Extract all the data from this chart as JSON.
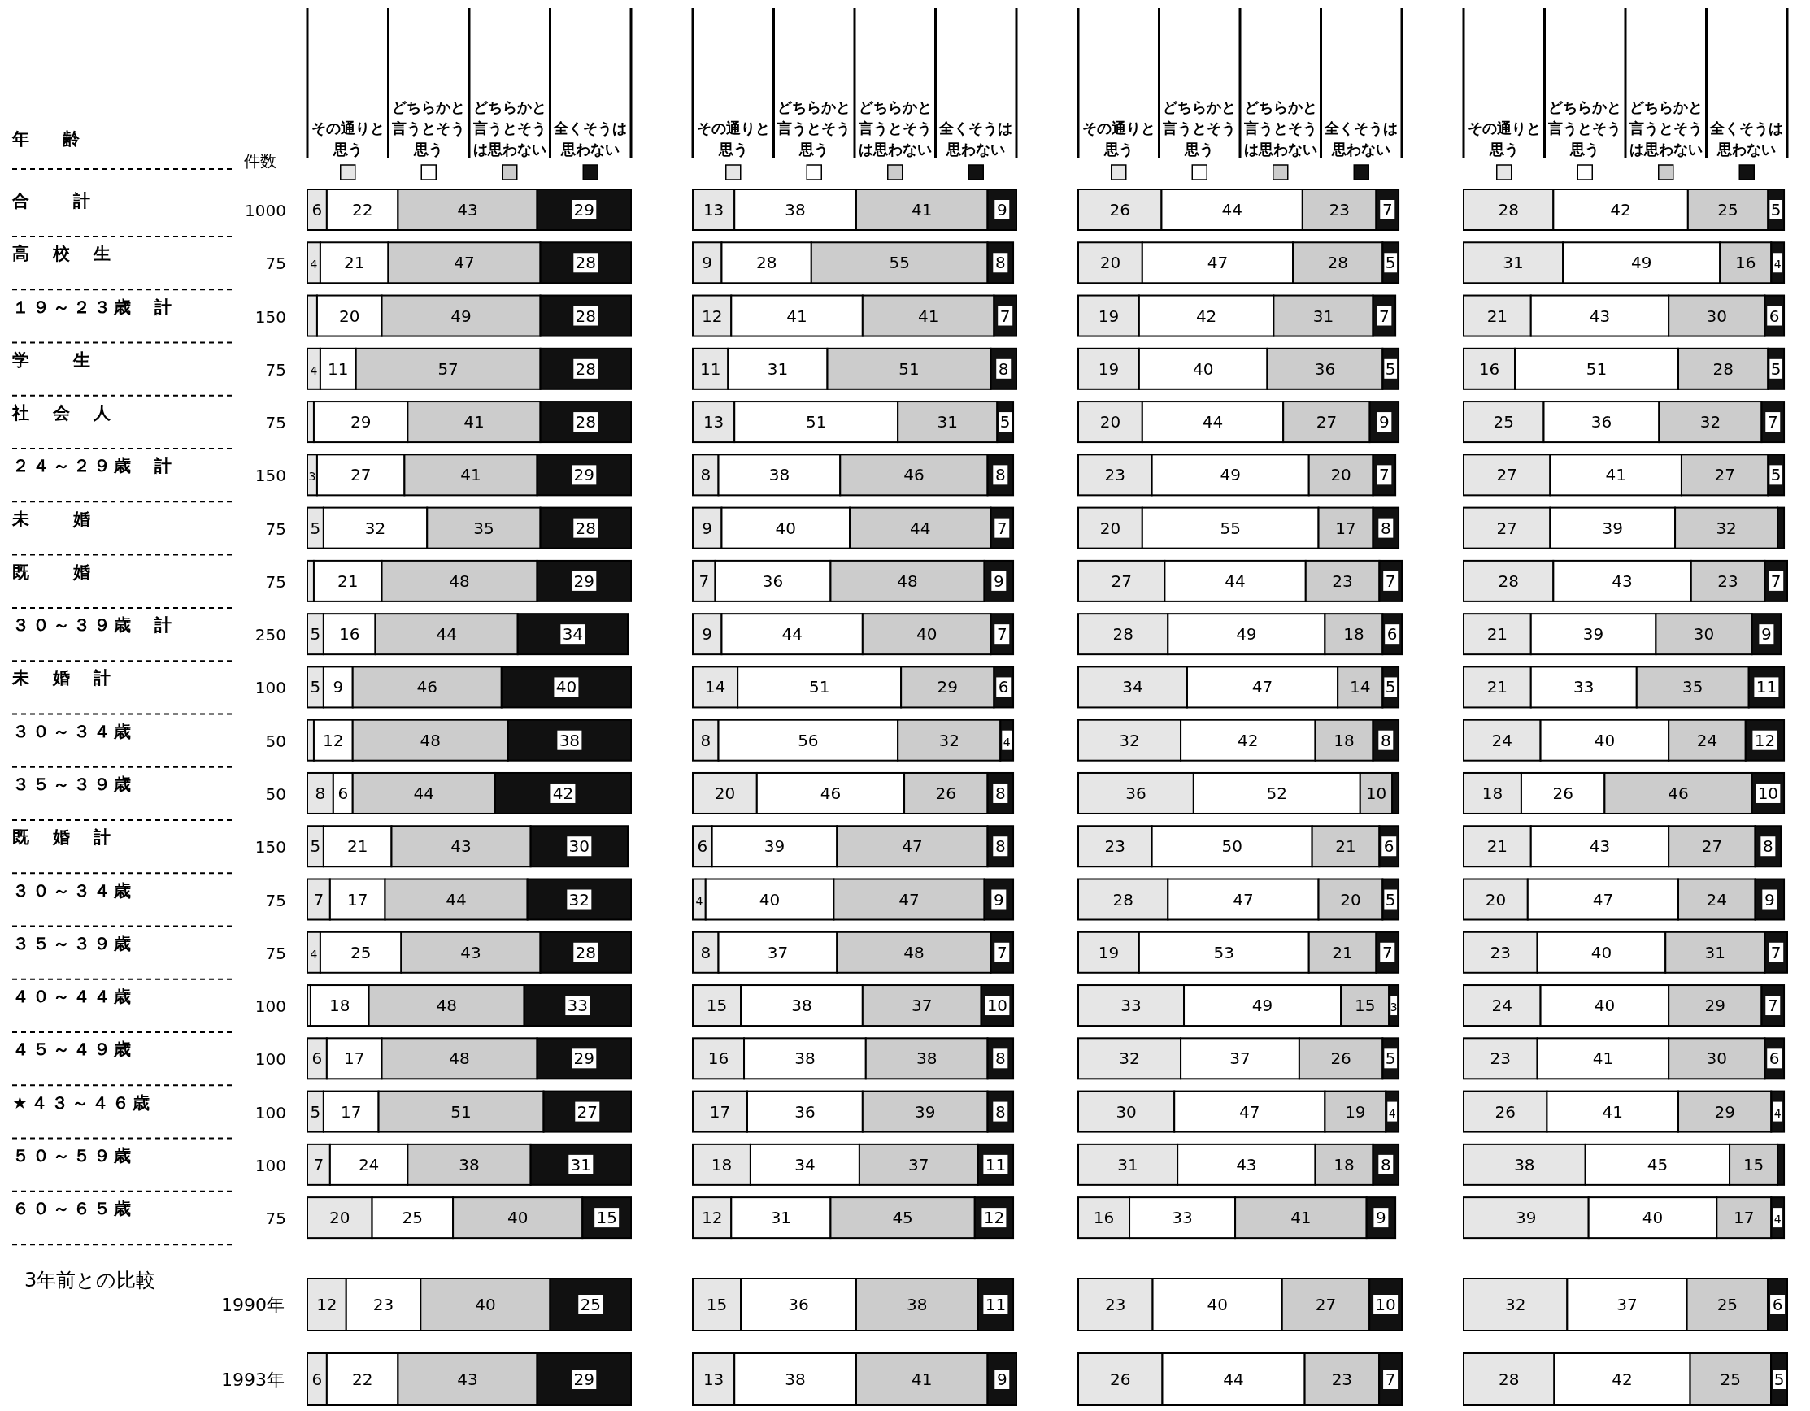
{
  "chart_data": [
    {
      "type": "bar",
      "orientation": "horizontal",
      "stacked": true,
      "legend": "top",
      "ylabel": "年　齢",
      "data_labels": true,
      "categories": [
        "合　　計",
        "高　校　生",
        "１９～２３歳　計",
        "学　　生",
        "社　会　人",
        "２４～２９歳　計",
        "未　　婚",
        "既　　婚",
        "３０～３９歳　計",
        "未　婚　計",
        "３０～３４歳",
        "３５～３９歳",
        "既　婚　計",
        "３０～３４歳",
        "３５～３９歳",
        "４０～４４歳",
        "４５～４９歳",
        "★４３～４６歳",
        "５０～５９歳",
        "６０～６５歳"
      ],
      "annotations": [
        "件数",
        "1000",
        "75",
        "150",
        "75",
        "75",
        "150",
        "75",
        "75",
        "250",
        "100",
        "50",
        "50",
        "150",
        "75",
        "75",
        "100",
        "100",
        "100",
        "100",
        "75"
      ],
      "series": [
        {
          "name": "その通りと思う",
          "color": "#e6e6e6",
          "values": [
            6,
            4,
            3,
            4,
            2,
            3,
            5,
            2,
            5,
            5,
            2,
            8,
            5,
            7,
            4,
            1,
            6,
            5,
            7,
            20
          ],
          "value_labels": [
            "6",
            "4",
            null,
            "4",
            null,
            "3",
            "5",
            null,
            "5",
            "5",
            null,
            "8",
            "5",
            "7",
            "4",
            null,
            "6",
            "5",
            "7",
            "20"
          ]
        },
        {
          "name": "どちらかと言うとそう思う",
          "color": "#ffffff",
          "values": [
            22,
            21,
            20,
            11,
            29,
            27,
            32,
            21,
            16,
            9,
            12,
            6,
            21,
            17,
            25,
            18,
            17,
            17,
            24,
            25
          ]
        },
        {
          "name": "どちらかと言うとそうは思わない",
          "color": "#cccccc",
          "values": [
            43,
            47,
            49,
            57,
            41,
            41,
            35,
            48,
            44,
            46,
            48,
            44,
            43,
            44,
            43,
            48,
            48,
            51,
            38,
            40
          ]
        },
        {
          "name": "全くそうは思わない",
          "color": "#111111",
          "values": [
            29,
            28,
            28,
            28,
            28,
            29,
            28,
            29,
            34,
            40,
            38,
            42,
            30,
            32,
            28,
            33,
            29,
            27,
            31,
            15
          ]
        }
      ]
    },
    {
      "type": "bar",
      "orientation": "horizontal",
      "stacked": true,
      "legend": "top",
      "data_labels": true,
      "categories": [
        null,
        null,
        null,
        null,
        null,
        null,
        null,
        null,
        null,
        null,
        null,
        null,
        null,
        null,
        null,
        null,
        null,
        null,
        null,
        null
      ],
      "series": [
        {
          "name": "その通りと思う",
          "color": "#e6e6e6",
          "values": [
            13,
            9,
            12,
            11,
            13,
            8,
            9,
            7,
            9,
            14,
            8,
            20,
            6,
            4,
            8,
            15,
            16,
            17,
            18,
            12
          ]
        },
        {
          "name": "どちらかと言うとそう思う",
          "color": "#ffffff",
          "values": [
            38,
            28,
            41,
            31,
            51,
            38,
            40,
            36,
            44,
            51,
            56,
            46,
            39,
            40,
            37,
            38,
            38,
            36,
            34,
            31
          ]
        },
        {
          "name": "どちらかと言うとそうは思わない",
          "color": "#cccccc",
          "values": [
            41,
            55,
            41,
            51,
            31,
            46,
            44,
            48,
            40,
            29,
            32,
            26,
            47,
            47,
            48,
            37,
            38,
            39,
            37,
            45
          ]
        },
        {
          "name": "全くそうは思わない",
          "color": "#111111",
          "values": [
            9,
            8,
            7,
            8,
            5,
            8,
            7,
            9,
            7,
            6,
            4,
            8,
            8,
            9,
            7,
            10,
            8,
            8,
            11,
            12
          ]
        }
      ]
    },
    {
      "type": "bar",
      "orientation": "horizontal",
      "stacked": true,
      "legend": "top",
      "data_labels": true,
      "categories": [
        null,
        null,
        null,
        null,
        null,
        null,
        null,
        null,
        null,
        null,
        null,
        null,
        null,
        null,
        null,
        null,
        null,
        null,
        null,
        null
      ],
      "series": [
        {
          "name": "その通りと思う",
          "color": "#e6e6e6",
          "values": [
            26,
            20,
            19,
            19,
            20,
            23,
            20,
            27,
            28,
            34,
            32,
            36,
            23,
            28,
            19,
            33,
            32,
            30,
            31,
            16
          ]
        },
        {
          "name": "どちらかと言うとそう思う",
          "color": "#ffffff",
          "values": [
            44,
            47,
            42,
            40,
            44,
            49,
            55,
            44,
            49,
            47,
            42,
            52,
            50,
            47,
            53,
            49,
            37,
            47,
            43,
            33
          ]
        },
        {
          "name": "どちらかと言うとそうは思わない",
          "color": "#cccccc",
          "values": [
            23,
            28,
            31,
            36,
            27,
            20,
            17,
            23,
            18,
            14,
            18,
            10,
            21,
            20,
            21,
            15,
            26,
            19,
            18,
            41
          ]
        },
        {
          "name": "全くそうは思わない",
          "color": "#111111",
          "values": [
            7,
            5,
            7,
            5,
            9,
            7,
            8,
            7,
            6,
            5,
            8,
            2,
            6,
            5,
            7,
            3,
            5,
            4,
            8,
            9
          ],
          "value_labels": [
            "7",
            "5",
            "7",
            "5",
            "9",
            "7",
            "8",
            "7",
            "6",
            "5",
            "8",
            null,
            "6",
            "5",
            "7",
            "3",
            "5",
            "4",
            "8",
            "9"
          ]
        }
      ]
    },
    {
      "type": "bar",
      "orientation": "horizontal",
      "stacked": true,
      "legend": "top",
      "data_labels": true,
      "categories": [
        null,
        null,
        null,
        null,
        null,
        null,
        null,
        null,
        null,
        null,
        null,
        null,
        null,
        null,
        null,
        null,
        null,
        null,
        null,
        null
      ],
      "series": [
        {
          "name": "その通りと思う",
          "color": "#e6e6e6",
          "values": [
            28,
            31,
            21,
            16,
            25,
            27,
            27,
            28,
            21,
            21,
            24,
            18,
            21,
            20,
            23,
            24,
            23,
            26,
            38,
            39
          ]
        },
        {
          "name": "どちらかと言うとそう思う",
          "color": "#ffffff",
          "values": [
            42,
            49,
            43,
            51,
            36,
            41,
            39,
            43,
            39,
            33,
            40,
            26,
            43,
            47,
            40,
            40,
            41,
            41,
            45,
            40
          ]
        },
        {
          "name": "どちらかと言うとそうは思わない",
          "color": "#cccccc",
          "values": [
            25,
            16,
            30,
            28,
            32,
            27,
            32,
            23,
            30,
            35,
            24,
            46,
            27,
            24,
            31,
            29,
            30,
            29,
            15,
            17
          ]
        },
        {
          "name": "全くそうは思わない",
          "color": "#111111",
          "values": [
            5,
            4,
            6,
            5,
            7,
            5,
            2,
            7,
            9,
            11,
            12,
            10,
            8,
            9,
            7,
            7,
            6,
            4,
            2,
            4
          ],
          "value_labels": [
            "5",
            "4",
            "6",
            "5",
            "7",
            "5",
            null,
            "7",
            "9",
            "11",
            "12",
            "10",
            "8",
            "9",
            "7",
            "7",
            "6",
            "4",
            null,
            "4"
          ]
        }
      ]
    },
    {
      "type": "bar",
      "orientation": "horizontal",
      "stacked": true,
      "title": "3年前との比較",
      "data_labels": true,
      "categories": [
        "1990年",
        "1993年"
      ],
      "series": [
        {
          "color": "#e6e6e6",
          "values": [
            12,
            6
          ]
        },
        {
          "color": "#ffffff",
          "values": [
            23,
            22
          ]
        },
        {
          "color": "#cccccc",
          "values": [
            40,
            43
          ]
        },
        {
          "color": "#111111",
          "values": [
            25,
            29
          ]
        }
      ]
    },
    {
      "type": "bar",
      "orientation": "horizontal",
      "stacked": true,
      "data_labels": true,
      "categories": [
        null,
        null
      ],
      "series": [
        {
          "color": "#e6e6e6",
          "values": [
            15,
            13
          ]
        },
        {
          "color": "#ffffff",
          "values": [
            36,
            38
          ]
        },
        {
          "color": "#cccccc",
          "values": [
            38,
            41
          ]
        },
        {
          "color": "#111111",
          "values": [
            11,
            9
          ]
        }
      ]
    },
    {
      "type": "bar",
      "orientation": "horizontal",
      "stacked": true,
      "data_labels": true,
      "categories": [
        null,
        null
      ],
      "series": [
        {
          "color": "#e6e6e6",
          "values": [
            23,
            26
          ]
        },
        {
          "color": "#ffffff",
          "values": [
            40,
            44
          ]
        },
        {
          "color": "#cccccc",
          "values": [
            27,
            23
          ]
        },
        {
          "color": "#111111",
          "values": [
            10,
            7
          ]
        }
      ]
    },
    {
      "type": "bar",
      "orientation": "horizontal",
      "stacked": true,
      "data_labels": true,
      "categories": [
        null,
        null
      ],
      "series": [
        {
          "color": "#e6e6e6",
          "values": [
            32,
            28
          ]
        },
        {
          "color": "#ffffff",
          "values": [
            37,
            42
          ]
        },
        {
          "color": "#cccccc",
          "values": [
            25,
            25
          ]
        },
        {
          "color": "#111111",
          "values": [
            6,
            5
          ]
        }
      ]
    }
  ]
}
